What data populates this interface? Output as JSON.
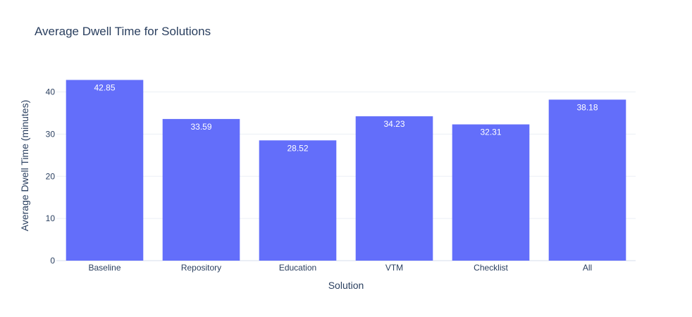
{
  "chart_data": {
    "type": "bar",
    "title": "Average Dwell Time for Solutions",
    "xlabel": "Solution",
    "ylabel": "Average Dwell Time (minutes)",
    "categories": [
      "Baseline",
      "Repository",
      "Education",
      "VTM",
      "Checklist",
      "All"
    ],
    "values": [
      42.85,
      33.59,
      28.52,
      34.23,
      32.31,
      38.18
    ],
    "value_labels": [
      "42.85",
      "33.59",
      "28.52",
      "34.23",
      "32.31",
      "38.18"
    ],
    "ylim": [
      0,
      45.1
    ],
    "yticks": [
      0,
      10,
      20,
      30,
      40
    ],
    "ytick_labels": [
      "0",
      "10",
      "20",
      "30",
      "40"
    ],
    "grid": true,
    "legend": "none",
    "colors": {
      "bar": "#636efa",
      "grid": "#ebeff5",
      "text": "#2a3f5f"
    }
  }
}
